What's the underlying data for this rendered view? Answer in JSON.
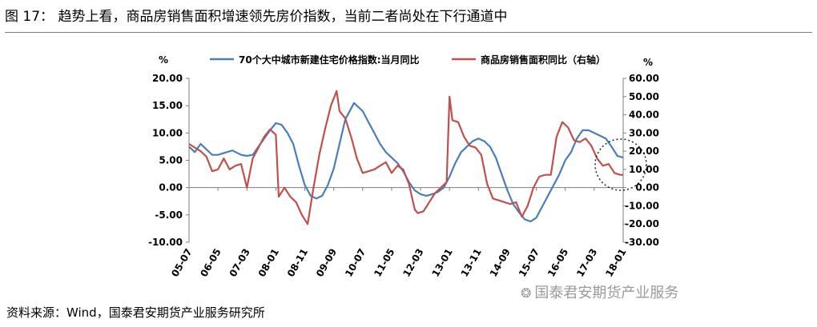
{
  "page": {
    "title": "图 17：  趋势上看，商品房销售面积增速领先房价指数，当前二者尚处在下行通道中",
    "source": "资料来源：Wind，国泰君安期货产业服务研究所",
    "watermark": "国泰君安期货产业服务",
    "watermark_icon": "wechat-icon"
  },
  "chart_data": {
    "type": "line",
    "title": "",
    "left_axis": {
      "unit_label": "%",
      "ylim": [
        -10,
        20
      ],
      "ticks": [
        "20.00",
        "15.00",
        "10.00",
        "5.00",
        "0.00",
        "-5.00",
        "-10.00"
      ]
    },
    "right_axis": {
      "unit_label": "%",
      "ylim": [
        -30,
        60
      ],
      "ticks": [
        "60.00",
        "50.00",
        "40.00",
        "30.00",
        "20.00",
        "10.00",
        "0.00",
        "-10.00",
        "-20.00",
        "-30.00"
      ]
    },
    "x_ticks": [
      "05-07",
      "06-05",
      "07-03",
      "08-01",
      "08-11",
      "09-09",
      "10-07",
      "11-05",
      "12-03",
      "13-01",
      "13-11",
      "14-09",
      "15-07",
      "16-05",
      "17-03",
      "18-01"
    ],
    "legend_position": "top",
    "grid": false,
    "series": [
      {
        "name": "70个大中城市新建住宅价格指数:当月同比",
        "axis": "left",
        "color": "#4a7ebb",
        "points": [
          [
            "05-07",
            7.5
          ],
          [
            "05-09",
            6.5
          ],
          [
            "05-11",
            8.0
          ],
          [
            "06-01",
            7.0
          ],
          [
            "06-03",
            6.0
          ],
          [
            "06-05",
            6.0
          ],
          [
            "06-08",
            6.5
          ],
          [
            "06-10",
            6.8
          ],
          [
            "07-01",
            6.0
          ],
          [
            "07-03",
            5.8
          ],
          [
            "07-05",
            6.0
          ],
          [
            "07-07",
            7.5
          ],
          [
            "07-09",
            9.0
          ],
          [
            "07-11",
            10.5
          ],
          [
            "08-01",
            11.8
          ],
          [
            "08-03",
            11.5
          ],
          [
            "08-05",
            10.0
          ],
          [
            "08-07",
            8.0
          ],
          [
            "08-09",
            4.0
          ],
          [
            "08-11",
            0.5
          ],
          [
            "09-01",
            -1.5
          ],
          [
            "09-03",
            -2.0
          ],
          [
            "09-05",
            -1.5
          ],
          [
            "09-07",
            0.5
          ],
          [
            "09-09",
            3.5
          ],
          [
            "09-11",
            8.0
          ],
          [
            "10-01",
            12.5
          ],
          [
            "10-04",
            15.5
          ],
          [
            "10-07",
            14.0
          ],
          [
            "10-09",
            12.0
          ],
          [
            "10-11",
            10.0
          ],
          [
            "11-01",
            8.0
          ],
          [
            "11-03",
            6.5
          ],
          [
            "11-05",
            5.5
          ],
          [
            "11-07",
            4.5
          ],
          [
            "11-09",
            3.0
          ],
          [
            "11-11",
            1.0
          ],
          [
            "12-01",
            -0.5
          ],
          [
            "12-03",
            -1.2
          ],
          [
            "12-05",
            -1.5
          ],
          [
            "12-07",
            -1.2
          ],
          [
            "12-09",
            -0.8
          ],
          [
            "12-11",
            0.0
          ],
          [
            "13-01",
            2.0
          ],
          [
            "13-03",
            4.5
          ],
          [
            "13-05",
            6.5
          ],
          [
            "13-07",
            7.5
          ],
          [
            "13-09",
            8.5
          ],
          [
            "13-11",
            9.0
          ],
          [
            "14-01",
            8.5
          ],
          [
            "14-03",
            7.5
          ],
          [
            "14-05",
            5.5
          ],
          [
            "14-07",
            2.5
          ],
          [
            "14-09",
            -0.5
          ],
          [
            "14-11",
            -3.0
          ],
          [
            "15-01",
            -4.5
          ],
          [
            "15-03",
            -5.8
          ],
          [
            "15-05",
            -6.2
          ],
          [
            "15-07",
            -5.5
          ],
          [
            "15-09",
            -3.5
          ],
          [
            "15-11",
            -1.5
          ],
          [
            "16-01",
            0.5
          ],
          [
            "16-03",
            2.5
          ],
          [
            "16-05",
            5.0
          ],
          [
            "16-07",
            6.5
          ],
          [
            "16-09",
            9.0
          ],
          [
            "16-11",
            10.5
          ],
          [
            "17-01",
            10.5
          ],
          [
            "17-03",
            10.0
          ],
          [
            "17-05",
            9.5
          ],
          [
            "17-07",
            9.0
          ],
          [
            "17-09",
            7.5
          ],
          [
            "17-11",
            5.8
          ],
          [
            "18-01",
            5.5
          ]
        ]
      },
      {
        "name": "商品房销售面积同比（右轴）",
        "axis": "right",
        "color": "#c0504d",
        "points": [
          [
            "05-07",
            24.0
          ],
          [
            "05-09",
            22.0
          ],
          [
            "05-11",
            20.0
          ],
          [
            "06-01",
            17.0
          ],
          [
            "06-03",
            9.0
          ],
          [
            "06-05",
            10.0
          ],
          [
            "06-07",
            16.0
          ],
          [
            "06-09",
            10.0
          ],
          [
            "06-11",
            12.0
          ],
          [
            "07-01",
            13.0
          ],
          [
            "07-03",
            0.0
          ],
          [
            "07-05",
            16.0
          ],
          [
            "07-07",
            22.0
          ],
          [
            "07-09",
            28.0
          ],
          [
            "07-11",
            32.0
          ],
          [
            "08-01",
            29.0
          ],
          [
            "08-02",
            -5.0
          ],
          [
            "08-04",
            0.0
          ],
          [
            "08-06",
            -5.0
          ],
          [
            "08-08",
            -8.0
          ],
          [
            "08-10",
            -15.0
          ],
          [
            "08-12",
            -20.0
          ],
          [
            "09-02",
            0.0
          ],
          [
            "09-04",
            18.0
          ],
          [
            "09-06",
            32.0
          ],
          [
            "09-08",
            45.0
          ],
          [
            "09-10",
            53.0
          ],
          [
            "09-11",
            42.0
          ],
          [
            "10-01",
            38.0
          ],
          [
            "10-03",
            28.0
          ],
          [
            "10-05",
            16.0
          ],
          [
            "10-07",
            8.0
          ],
          [
            "10-09",
            9.0
          ],
          [
            "10-11",
            10.0
          ],
          [
            "11-01",
            12.0
          ],
          [
            "11-03",
            14.0
          ],
          [
            "11-05",
            8.0
          ],
          [
            "11-07",
            12.0
          ],
          [
            "11-09",
            10.0
          ],
          [
            "11-11",
            2.0
          ],
          [
            "12-01",
            -12.0
          ],
          [
            "12-02",
            -14.0
          ],
          [
            "12-04",
            -13.0
          ],
          [
            "12-06",
            -8.0
          ],
          [
            "12-08",
            -3.0
          ],
          [
            "12-10",
            0.0
          ],
          [
            "12-12",
            3.0
          ],
          [
            "13-01",
            50.0
          ],
          [
            "13-02",
            37.0
          ],
          [
            "13-04",
            36.0
          ],
          [
            "13-06",
            28.0
          ],
          [
            "13-08",
            23.0
          ],
          [
            "13-10",
            22.0
          ],
          [
            "13-12",
            18.0
          ],
          [
            "14-02",
            2.0
          ],
          [
            "14-04",
            -6.0
          ],
          [
            "14-06",
            -7.0
          ],
          [
            "14-08",
            -8.0
          ],
          [
            "14-10",
            -9.0
          ],
          [
            "14-12",
            -8.0
          ],
          [
            "15-02",
            -16.0
          ],
          [
            "15-04",
            -10.0
          ],
          [
            "15-06",
            0.0
          ],
          [
            "15-08",
            6.0
          ],
          [
            "15-10",
            7.0
          ],
          [
            "15-12",
            7.0
          ],
          [
            "16-02",
            28.0
          ],
          [
            "16-04",
            36.0
          ],
          [
            "16-06",
            33.0
          ],
          [
            "16-08",
            26.0
          ],
          [
            "16-10",
            25.0
          ],
          [
            "16-12",
            27.0
          ],
          [
            "17-02",
            23.0
          ],
          [
            "17-04",
            16.0
          ],
          [
            "17-06",
            12.0
          ],
          [
            "17-08",
            13.0
          ],
          [
            "17-10",
            8.0
          ],
          [
            "17-12",
            7.0
          ],
          [
            "18-01",
            7.0
          ]
        ]
      }
    ],
    "annotations": [
      {
        "type": "dashed-circle",
        "around": "latest values (17-11 to 18-01)"
      }
    ]
  }
}
